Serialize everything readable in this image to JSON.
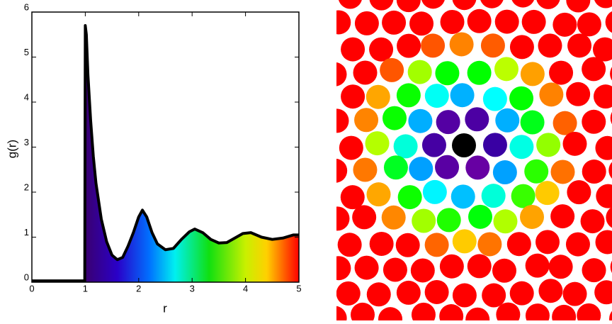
{
  "chart_data": {
    "type": "line",
    "xlabel": "r",
    "ylabel": "g(r)",
    "x": [
      0,
      0.95,
      0.99,
      1.0,
      1.02,
      1.05,
      1.1,
      1.15,
      1.2,
      1.3,
      1.4,
      1.5,
      1.6,
      1.7,
      1.8,
      1.9,
      2.0,
      2.07,
      2.15,
      2.25,
      2.35,
      2.5,
      2.65,
      2.8,
      2.95,
      3.05,
      3.2,
      3.35,
      3.5,
      3.65,
      3.8,
      3.95,
      4.1,
      4.3,
      4.5,
      4.7,
      4.9,
      5.0
    ],
    "values": [
      0.03,
      0.03,
      0.03,
      5.7,
      5.5,
      4.6,
      3.6,
      2.8,
      2.2,
      1.4,
      0.9,
      0.6,
      0.5,
      0.55,
      0.8,
      1.1,
      1.45,
      1.6,
      1.45,
      1.1,
      0.85,
      0.72,
      0.75,
      0.95,
      1.12,
      1.18,
      1.1,
      0.95,
      0.87,
      0.88,
      0.98,
      1.08,
      1.1,
      1.0,
      0.95,
      0.98,
      1.05,
      1.05
    ],
    "color": "#000000",
    "xlim": [
      0,
      5
    ],
    "xticks": [
      0,
      1,
      2,
      3,
      4,
      5
    ],
    "ylim": [
      0,
      6
    ],
    "yticks": [
      0,
      1,
      2,
      3,
      4,
      5,
      6
    ],
    "grid": false
  }
}
